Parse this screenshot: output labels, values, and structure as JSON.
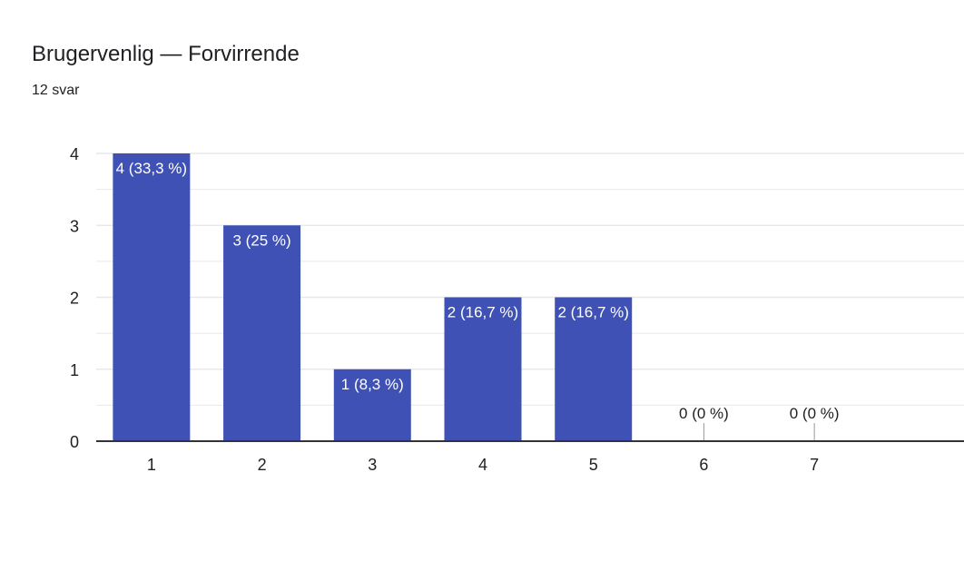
{
  "header": {
    "title": "Brugervenlig — Forvirrende",
    "subtitle": "12 svar"
  },
  "chart_data": {
    "type": "bar",
    "categories": [
      "1",
      "2",
      "3",
      "4",
      "5",
      "6",
      "7"
    ],
    "values": [
      4,
      3,
      1,
      2,
      2,
      0,
      0
    ],
    "data_labels": [
      "4 (33,3 %)",
      "3 (25 %)",
      "1 (8,3 %)",
      "2 (16,7 %)",
      "2 (16,7 %)",
      "0 (0 %)",
      "0 (0 %)"
    ],
    "yticks": [
      "0",
      "1",
      "2",
      "3",
      "4"
    ],
    "ylim": [
      0,
      4
    ],
    "grid": true,
    "legend": "none",
    "bar_color": "#3f51b5",
    "label_color_inside": "#ffffff",
    "label_color_outside": "#202124",
    "axis_color": "#333333",
    "grid_color": "#e8e8e8"
  }
}
